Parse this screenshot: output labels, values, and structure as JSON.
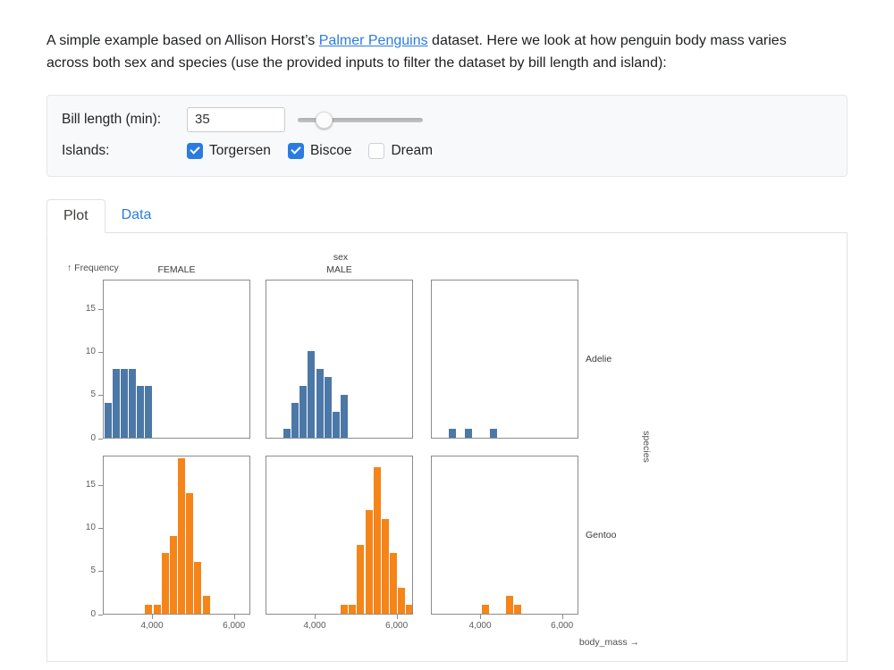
{
  "intro": {
    "text_before_link": "A simple example based on Allison Horst’s ",
    "link_text": "Palmer Penguins",
    "text_after_link": " dataset. Here we look at how penguin body mass varies across both sex and species (use the provided inputs to filter the dataset by bill length and island):"
  },
  "controls": {
    "bill_length_label": "Bill length (min):",
    "bill_length_value": "35",
    "slider_percent": 20,
    "islands_label": "Islands:",
    "islands": [
      {
        "label": "Torgersen",
        "checked": true
      },
      {
        "label": "Biscoe",
        "checked": true
      },
      {
        "label": "Dream",
        "checked": false
      }
    ]
  },
  "tabs": [
    {
      "label": "Plot",
      "active": true
    },
    {
      "label": "Data",
      "active": false
    }
  ],
  "colors": {
    "accent_blue": "#2b7ce0",
    "bar_blue": "#4c78a8",
    "bar_orange": "#f58518"
  },
  "chart_data": {
    "type": "bar",
    "subtype": "faceted-histogram",
    "x_field": "body_mass",
    "y_field": "Frequency",
    "x_axis_title": "body_mass →",
    "y_axis_title": "↑ Frequency",
    "column_title": "sex",
    "row_title": "species",
    "column_headers": [
      "FEMALE",
      "MALE",
      ""
    ],
    "row_headers": [
      "Adelie",
      "Gentoo"
    ],
    "x_domain": [
      2800,
      6400
    ],
    "y_domain": [
      0,
      18.5
    ],
    "bin_width": 200,
    "x_ticks": [
      4000,
      6000
    ],
    "x_tick_labels": [
      "4,000",
      "6,000"
    ],
    "y_ticks": [
      0,
      5,
      10,
      15
    ],
    "row_colors": [
      "#4c78a8",
      "#f58518"
    ],
    "panels": [
      {
        "row": "Adelie",
        "column": "FEMALE",
        "bins": [
          [
            2800,
            4
          ],
          [
            3000,
            8
          ],
          [
            3200,
            8
          ],
          [
            3400,
            8
          ],
          [
            3600,
            6
          ],
          [
            3800,
            6
          ]
        ]
      },
      {
        "row": "Adelie",
        "column": "MALE",
        "bins": [
          [
            3200,
            1
          ],
          [
            3400,
            4
          ],
          [
            3600,
            6
          ],
          [
            3800,
            10
          ],
          [
            4000,
            8
          ],
          [
            4200,
            7
          ],
          [
            4400,
            3
          ],
          [
            4600,
            5
          ]
        ]
      },
      {
        "row": "Adelie",
        "column": "",
        "bins": [
          [
            3200,
            1
          ],
          [
            3600,
            1
          ],
          [
            4200,
            1
          ]
        ]
      },
      {
        "row": "Gentoo",
        "column": "FEMALE",
        "bins": [
          [
            3800,
            1
          ],
          [
            4000,
            1
          ],
          [
            4200,
            7
          ],
          [
            4400,
            9
          ],
          [
            4600,
            18
          ],
          [
            4800,
            14
          ],
          [
            5000,
            6
          ],
          [
            5200,
            2
          ]
        ]
      },
      {
        "row": "Gentoo",
        "column": "MALE",
        "bins": [
          [
            4600,
            1
          ],
          [
            4800,
            1
          ],
          [
            5000,
            8
          ],
          [
            5200,
            12
          ],
          [
            5400,
            17
          ],
          [
            5600,
            11
          ],
          [
            5800,
            7
          ],
          [
            6000,
            3
          ],
          [
            6200,
            1
          ]
        ]
      },
      {
        "row": "Gentoo",
        "column": "",
        "bins": [
          [
            4000,
            1
          ],
          [
            4600,
            2
          ],
          [
            4800,
            1
          ]
        ]
      }
    ]
  }
}
